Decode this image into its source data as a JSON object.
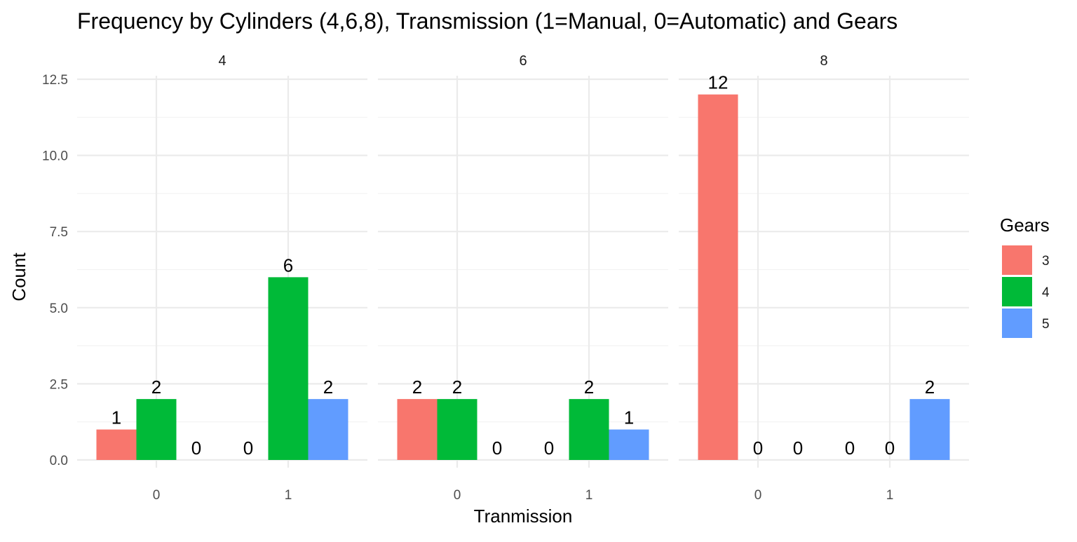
{
  "chart_data": {
    "type": "bar",
    "title": "Frequency by Cylinders (4,6,8), Transmission (1=Manual, 0=Automatic) and Gears",
    "xlabel": "Tranmission",
    "ylabel": "Count",
    "ylim": [
      0,
      12.5
    ],
    "y_ticks": [
      "0.0",
      "2.5",
      "5.0",
      "7.5",
      "10.0",
      "12.5"
    ],
    "y_tick_values": [
      0,
      2.5,
      5,
      7.5,
      10,
      12.5
    ],
    "categories": [
      "0",
      "1"
    ],
    "facet_var": "Cylinders",
    "grid": true,
    "legend": {
      "title": "Gears",
      "position": "right",
      "entries": [
        {
          "label": "3",
          "color": "#F8766D"
        },
        {
          "label": "4",
          "color": "#00BA38"
        },
        {
          "label": "5",
          "color": "#619CFF"
        }
      ]
    },
    "facets": [
      {
        "label": "4",
        "groups": [
          {
            "category": "0",
            "values": [
              1,
              2,
              0
            ],
            "labels": [
              "1",
              "2",
              "0"
            ]
          },
          {
            "category": "1",
            "values": [
              0,
              6,
              2
            ],
            "labels": [
              "0",
              "6",
              "2"
            ]
          }
        ]
      },
      {
        "label": "6",
        "groups": [
          {
            "category": "0",
            "values": [
              2,
              2,
              0
            ],
            "labels": [
              "2",
              "2",
              "0"
            ]
          },
          {
            "category": "1",
            "values": [
              0,
              2,
              1
            ],
            "labels": [
              "0",
              "2",
              "1"
            ]
          }
        ]
      },
      {
        "label": "8",
        "groups": [
          {
            "category": "0",
            "values": [
              12,
              0,
              0
            ],
            "labels": [
              "12",
              "0",
              "0"
            ]
          },
          {
            "category": "1",
            "values": [
              0,
              0,
              2
            ],
            "labels": [
              "0",
              "0",
              "2"
            ]
          }
        ]
      }
    ]
  }
}
